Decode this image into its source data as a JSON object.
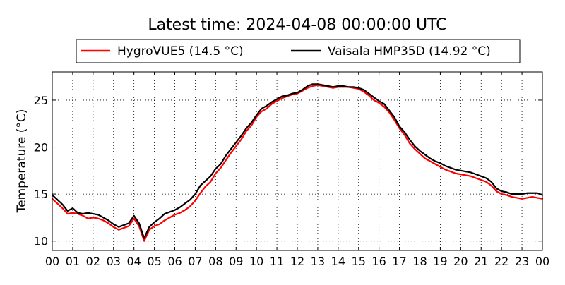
{
  "chart_data": {
    "type": "line",
    "title": "Latest time: 2024-04-08 00:00:00 UTC",
    "xlabel": "",
    "ylabel": "Temperature (°C)",
    "xlim": [
      0,
      24
    ],
    "ylim": [
      9,
      28
    ],
    "x_ticks": [
      0,
      1,
      2,
      3,
      4,
      5,
      6,
      7,
      8,
      9,
      10,
      11,
      12,
      13,
      14,
      15,
      16,
      17,
      18,
      19,
      20,
      21,
      22,
      23,
      24
    ],
    "x_tick_labels": [
      "00",
      "01",
      "02",
      "03",
      "04",
      "05",
      "06",
      "07",
      "08",
      "09",
      "10",
      "11",
      "12",
      "13",
      "14",
      "15",
      "16",
      "17",
      "18",
      "19",
      "20",
      "21",
      "22",
      "23",
      "00"
    ],
    "y_ticks": [
      10,
      15,
      20,
      25
    ],
    "y_tick_labels": [
      "10",
      "15",
      "20",
      "25"
    ],
    "grid": true,
    "legend": "top-center, outside",
    "x": [
      0,
      0.25,
      0.5,
      0.75,
      1,
      1.25,
      1.5,
      1.75,
      2,
      2.25,
      2.5,
      2.75,
      3,
      3.25,
      3.5,
      3.75,
      4,
      4.25,
      4.5,
      4.75,
      5,
      5.25,
      5.5,
      5.75,
      6,
      6.25,
      6.5,
      6.75,
      7,
      7.25,
      7.5,
      7.75,
      8,
      8.25,
      8.5,
      8.75,
      9,
      9.25,
      9.5,
      9.75,
      10,
      10.25,
      10.5,
      10.75,
      11,
      11.25,
      11.5,
      11.75,
      12,
      12.25,
      12.5,
      12.75,
      13,
      13.25,
      13.5,
      13.75,
      14,
      14.25,
      14.5,
      14.75,
      15,
      15.25,
      15.5,
      15.75,
      16,
      16.25,
      16.5,
      16.75,
      17,
      17.25,
      17.5,
      17.75,
      18,
      18.25,
      18.5,
      18.75,
      19,
      19.25,
      19.5,
      19.75,
      20,
      20.25,
      20.5,
      20.75,
      21,
      21.25,
      21.5,
      21.75,
      22,
      22.25,
      22.5,
      22.75,
      23,
      23.25,
      23.5,
      23.75,
      24
    ],
    "series": [
      {
        "name": "HygroVUE5 (14.5 °C)",
        "color": "#ff0000",
        "values": [
          14.5,
          14.0,
          13.5,
          12.9,
          13.0,
          12.9,
          12.7,
          12.4,
          12.5,
          12.4,
          12.2,
          11.9,
          11.5,
          11.2,
          11.4,
          11.6,
          12.4,
          11.6,
          10.0,
          11.2,
          11.6,
          11.8,
          12.2,
          12.5,
          12.8,
          13.0,
          13.3,
          13.7,
          14.3,
          15.1,
          15.8,
          16.3,
          17.2,
          17.8,
          18.6,
          19.4,
          20.1,
          20.8,
          21.7,
          22.3,
          23.2,
          23.8,
          24.1,
          24.6,
          24.9,
          25.2,
          25.4,
          25.6,
          25.7,
          26.0,
          26.3,
          26.5,
          26.6,
          26.5,
          26.4,
          26.3,
          26.4,
          26.4,
          26.4,
          26.3,
          26.2,
          25.9,
          25.5,
          25.0,
          24.7,
          24.3,
          23.7,
          22.9,
          22.0,
          21.3,
          20.4,
          19.8,
          19.3,
          18.8,
          18.5,
          18.2,
          17.9,
          17.6,
          17.4,
          17.2,
          17.1,
          17.0,
          16.9,
          16.7,
          16.5,
          16.3,
          15.9,
          15.3,
          15.0,
          14.9,
          14.7,
          14.6,
          14.5,
          14.6,
          14.7,
          14.6,
          14.5
        ]
      },
      {
        "name": "Vaisala HMP35D (14.92 °C)",
        "color": "#000000",
        "values": [
          14.9,
          14.4,
          13.9,
          13.2,
          13.5,
          13.0,
          12.9,
          13.0,
          12.9,
          12.8,
          12.5,
          12.2,
          11.8,
          11.5,
          11.7,
          11.9,
          12.7,
          11.9,
          10.3,
          11.5,
          12.0,
          12.4,
          12.9,
          13.1,
          13.3,
          13.6,
          14.0,
          14.4,
          15.0,
          15.9,
          16.4,
          16.9,
          17.7,
          18.2,
          19.1,
          19.8,
          20.5,
          21.2,
          22.0,
          22.6,
          23.4,
          24.1,
          24.4,
          24.8,
          25.1,
          25.4,
          25.5,
          25.7,
          25.8,
          26.1,
          26.5,
          26.7,
          26.7,
          26.6,
          26.5,
          26.4,
          26.5,
          26.5,
          26.4,
          26.4,
          26.3,
          26.1,
          25.7,
          25.3,
          24.9,
          24.6,
          23.9,
          23.2,
          22.2,
          21.6,
          20.8,
          20.1,
          19.6,
          19.2,
          18.8,
          18.5,
          18.3,
          18.0,
          17.8,
          17.6,
          17.5,
          17.4,
          17.3,
          17.1,
          16.9,
          16.7,
          16.3,
          15.6,
          15.3,
          15.2,
          15.0,
          15.0,
          15.0,
          15.1,
          15.1,
          15.1,
          14.9
        ]
      }
    ]
  }
}
